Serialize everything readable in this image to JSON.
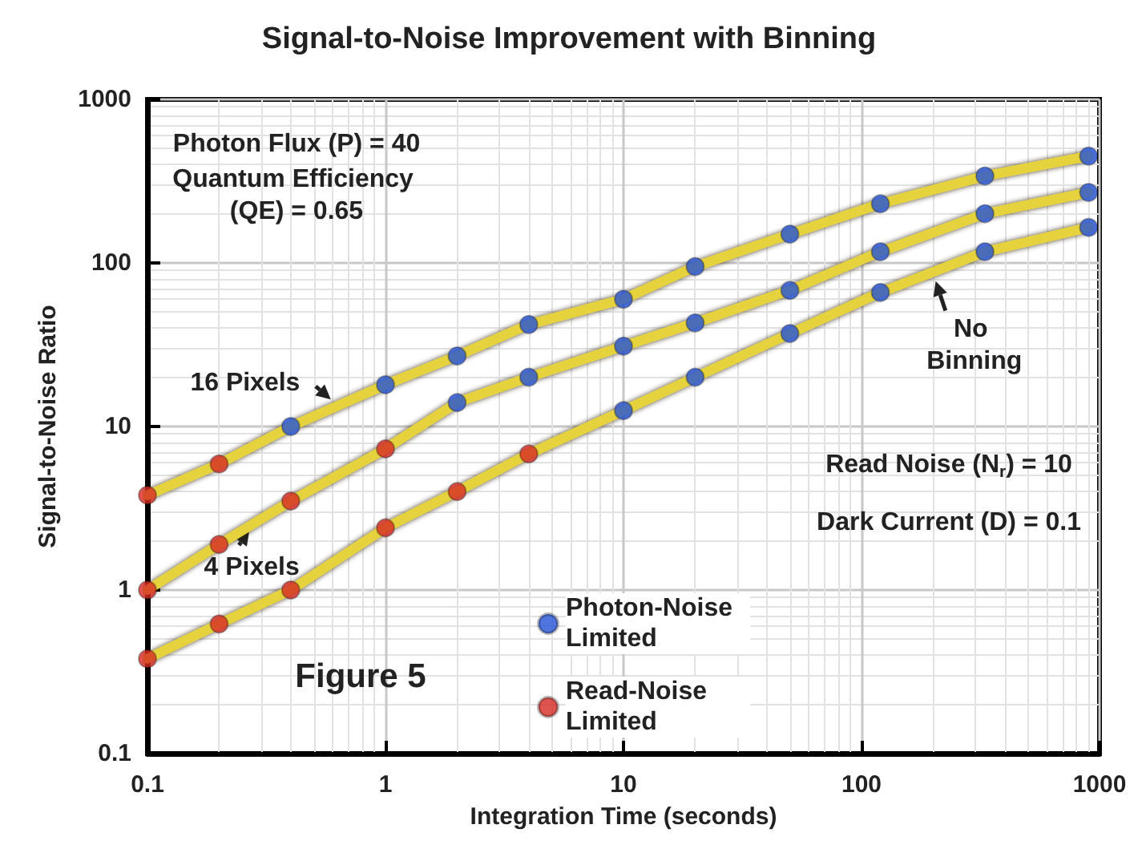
{
  "chart_data": {
    "type": "line",
    "title": "Signal-to-Noise Improvement with Binning",
    "xlabel": "Integration Time (seconds)",
    "ylabel": "Signal-to-Noise Ratio",
    "x": [
      0.1,
      0.2,
      0.4,
      1,
      2,
      4,
      10,
      20,
      50,
      120,
      330,
      900
    ],
    "series": [
      {
        "name": "16 Pixels",
        "marker": "none",
        "color": "#e6d23c",
        "values": [
          3.8,
          5.9,
          10,
          18,
          27,
          42,
          60,
          95,
          150,
          230,
          340,
          450
        ]
      },
      {
        "name": "4 Pixels",
        "marker": "none",
        "color": "#e6d23c",
        "values": [
          1.0,
          1.9,
          3.5,
          7.3,
          14,
          20,
          31,
          43,
          68,
          117,
          200,
          270
        ]
      },
      {
        "name": "No Binning",
        "marker": "none",
        "color": "#e6d23c",
        "values": [
          0.38,
          0.62,
          1.0,
          2.4,
          4.0,
          6.8,
          12.5,
          20,
          37,
          66,
          117,
          165
        ]
      },
      {
        "name": "Photon-Noise Limited",
        "type": "scatter",
        "marker": "circle",
        "color": "#2452d6",
        "x": [
          0.4,
          1,
          2,
          4,
          10,
          20,
          50,
          120,
          330,
          900,
          2,
          4,
          10,
          20,
          50,
          120,
          330,
          900,
          10,
          20,
          50,
          120,
          330,
          900
        ],
        "values": [
          10,
          18,
          27,
          42,
          60,
          95,
          150,
          230,
          340,
          450,
          14,
          20,
          31,
          43,
          68,
          117,
          200,
          270,
          12.5,
          20,
          37,
          66,
          117,
          165
        ]
      },
      {
        "name": "Read-Noise Limited",
        "type": "scatter",
        "marker": "circle",
        "color": "#d42a22",
        "x": [
          0.1,
          0.2,
          0.1,
          0.2,
          0.4,
          1,
          0.1,
          0.2,
          0.4,
          1,
          2,
          4
        ],
        "values": [
          3.8,
          5.9,
          1.0,
          1.9,
          3.5,
          7.3,
          0.38,
          0.62,
          1.0,
          2.4,
          4.0,
          6.8
        ]
      }
    ],
    "log": "xy",
    "xlim": [
      0.1,
      1000
    ],
    "ylim": [
      0.1,
      1000
    ],
    "xticks": [
      0.1,
      1,
      10,
      100,
      1000
    ],
    "yticks": [
      0.1,
      1,
      10,
      100,
      1000
    ],
    "grid": true,
    "legend": "bottom",
    "annotations": [
      "Photon Flux (P) = 40",
      "Quantum Efficiency (QE) = 0.65",
      "Read Noise (N$_{r}$) = 10",
      "Dark Current (D) = 0.1",
      "Figure 5"
    ]
  }
}
